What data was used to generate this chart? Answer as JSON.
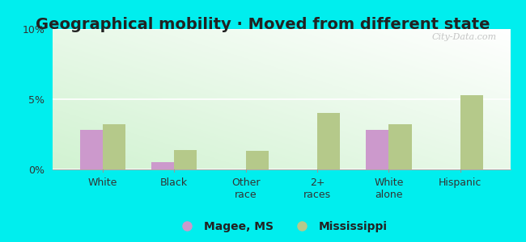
{
  "title": "Geographical mobility · Moved from different state",
  "categories": [
    "White",
    "Black",
    "Other\nrace",
    "2+\nraces",
    "White\nalone",
    "Hispanic"
  ],
  "magee_values": [
    2.8,
    0.5,
    0.0,
    0.0,
    2.8,
    0.0
  ],
  "mississippi_values": [
    3.2,
    1.4,
    1.3,
    4.0,
    3.2,
    5.3
  ],
  "magee_color": "#cc99cc",
  "mississippi_color": "#b5c98a",
  "ylim": [
    0,
    10
  ],
  "yticks": [
    0,
    5,
    10
  ],
  "ytick_labels": [
    "0%",
    "5%",
    "10%"
  ],
  "legend_labels": [
    "Magee, MS",
    "Mississippi"
  ],
  "background_color": "#00eeee",
  "watermark": "City-Data.com",
  "bar_width": 0.32,
  "title_fontsize": 14,
  "axis_fontsize": 9,
  "title_color": "#222222"
}
